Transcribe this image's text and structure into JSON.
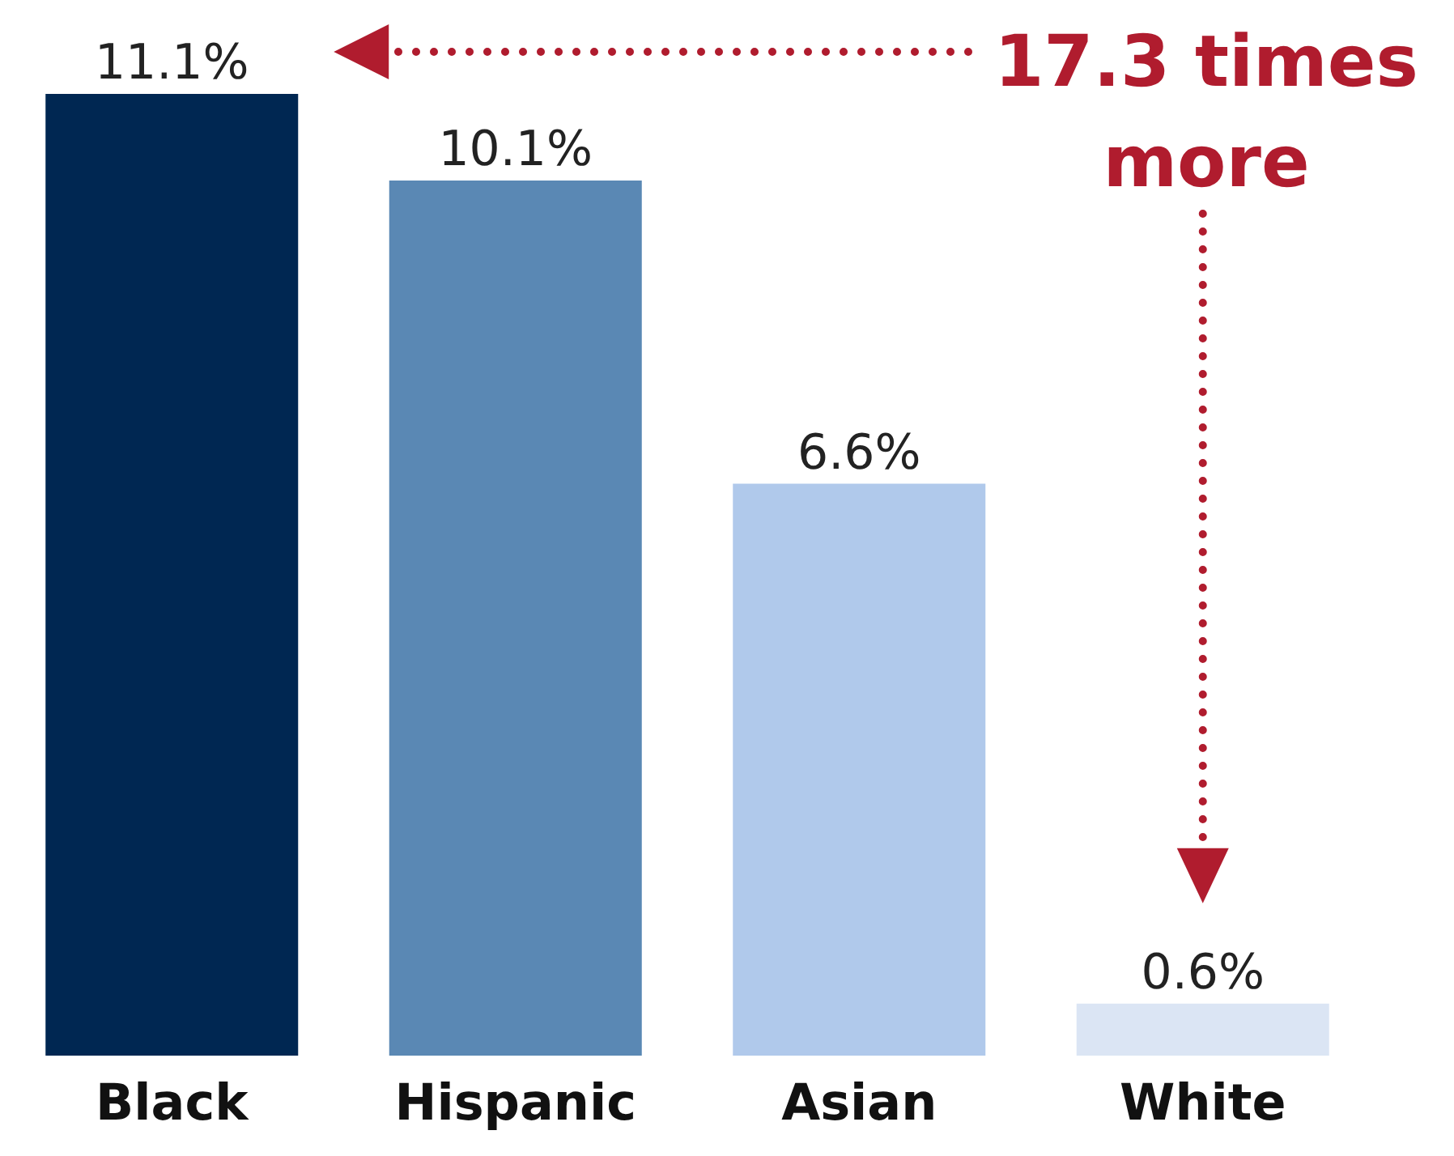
{
  "chart_data": {
    "type": "bar",
    "categories": [
      "Black",
      "Hispanic",
      "Asian",
      "White"
    ],
    "values": [
      11.1,
      10.1,
      6.6,
      0.6
    ],
    "colors": [
      "#002752",
      "#5a88b4",
      "#b0c9eb",
      "#dbe5f4"
    ],
    "value_labels": [
      "11.1%",
      "10.1%",
      "6.6%",
      "0.6%"
    ],
    "annotations": [
      "17.3 times more"
    ]
  }
}
